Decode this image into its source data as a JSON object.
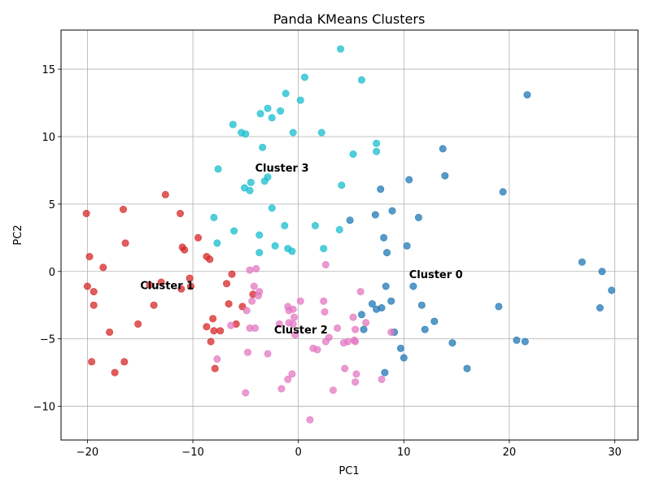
{
  "chart_data": {
    "type": "scatter",
    "title": "Panda KMeans Clusters",
    "xlabel": "PC1",
    "ylabel": "PC2",
    "xlim": [
      -22.5,
      32.2
    ],
    "ylim": [
      -12.5,
      17.9
    ],
    "xticks": [
      -20,
      -10,
      0,
      10,
      20,
      30
    ],
    "yticks": [
      -10,
      -5,
      0,
      5,
      10,
      15
    ],
    "xtick_labels": [
      "−20",
      "−10",
      "0",
      "10",
      "20",
      "30"
    ],
    "ytick_labels": [
      "−10",
      "−5",
      "0",
      "5",
      "10",
      "15"
    ],
    "grid": true,
    "legend": "none",
    "annotations": [
      {
        "text": "Cluster 0",
        "x": 10.5,
        "y": -0.2
      },
      {
        "text": "Cluster 1",
        "x": -15.0,
        "y": -1.0
      },
      {
        "text": "Cluster 2",
        "x": -2.3,
        "y": -4.3
      },
      {
        "text": "Cluster 3",
        "x": -4.1,
        "y": 7.7
      }
    ],
    "series": [
      {
        "cluster": 0,
        "color": "#1f77b4",
        "points": [
          [
            4.9,
            3.8
          ],
          [
            7.3,
            4.2
          ],
          [
            8.9,
            4.5
          ],
          [
            11.4,
            4.0
          ],
          [
            7.8,
            6.1
          ],
          [
            10.5,
            6.8
          ],
          [
            13.7,
            9.1
          ],
          [
            13.9,
            7.1
          ],
          [
            19.4,
            5.9
          ],
          [
            21.7,
            13.1
          ],
          [
            8.1,
            2.5
          ],
          [
            10.3,
            1.9
          ],
          [
            8.4,
            1.4
          ],
          [
            26.9,
            0.7
          ],
          [
            28.8,
            0.0
          ],
          [
            29.7,
            -1.4
          ],
          [
            8.3,
            -1.1
          ],
          [
            10.9,
            -1.1
          ],
          [
            8.8,
            -2.2
          ],
          [
            7.0,
            -2.4
          ],
          [
            7.4,
            -2.8
          ],
          [
            7.9,
            -2.7
          ],
          [
            6.0,
            -3.2
          ],
          [
            11.7,
            -2.5
          ],
          [
            12.9,
            -3.7
          ],
          [
            19.0,
            -2.6
          ],
          [
            28.6,
            -2.7
          ],
          [
            9.1,
            -4.5
          ],
          [
            12.0,
            -4.3
          ],
          [
            6.2,
            -4.3
          ],
          [
            14.6,
            -5.3
          ],
          [
            20.7,
            -5.1
          ],
          [
            21.5,
            -5.2
          ],
          [
            9.7,
            -5.7
          ],
          [
            10.0,
            -6.4
          ],
          [
            16.0,
            -7.2
          ],
          [
            8.2,
            -7.5
          ]
        ]
      },
      {
        "cluster": 1,
        "color": "#d62728",
        "points": [
          [
            -20.1,
            4.3
          ],
          [
            -16.6,
            4.6
          ],
          [
            -12.6,
            5.7
          ],
          [
            -11.2,
            4.3
          ],
          [
            -16.4,
            2.1
          ],
          [
            -9.5,
            2.5
          ],
          [
            -11.0,
            1.8
          ],
          [
            -10.8,
            1.6
          ],
          [
            -19.8,
            1.1
          ],
          [
            -18.5,
            0.3
          ],
          [
            -8.7,
            1.1
          ],
          [
            -8.4,
            0.9
          ],
          [
            -20.0,
            -1.1
          ],
          [
            -19.4,
            -1.5
          ],
          [
            -14.1,
            -1.0
          ],
          [
            -13.0,
            -0.8
          ],
          [
            -10.3,
            -0.5
          ],
          [
            -10.2,
            -1.1
          ],
          [
            -11.1,
            -1.3
          ],
          [
            -6.8,
            -0.9
          ],
          [
            -6.3,
            -0.2
          ],
          [
            -19.4,
            -2.5
          ],
          [
            -13.7,
            -2.5
          ],
          [
            -6.6,
            -2.4
          ],
          [
            -5.3,
            -2.6
          ],
          [
            -4.3,
            -1.7
          ],
          [
            -8.1,
            -3.5
          ],
          [
            -15.2,
            -3.9
          ],
          [
            -17.9,
            -4.5
          ],
          [
            -8.7,
            -4.1
          ],
          [
            -8.0,
            -4.4
          ],
          [
            -7.4,
            -4.4
          ],
          [
            -5.9,
            -3.9
          ],
          [
            -8.3,
            -5.2
          ],
          [
            -19.6,
            -6.7
          ],
          [
            -16.5,
            -6.7
          ],
          [
            -17.4,
            -7.5
          ],
          [
            -7.9,
            -7.2
          ]
        ]
      },
      {
        "cluster": 2,
        "color": "#e377c2",
        "points": [
          [
            2.6,
            0.5
          ],
          [
            -4.6,
            0.1
          ],
          [
            -4.0,
            0.2
          ],
          [
            -4.2,
            -1.1
          ],
          [
            -3.7,
            -1.5
          ],
          [
            -3.8,
            -1.8
          ],
          [
            -4.4,
            -2.2
          ],
          [
            5.9,
            -1.5
          ],
          [
            0.2,
            -2.2
          ],
          [
            2.4,
            -2.2
          ],
          [
            -1.0,
            -2.6
          ],
          [
            -0.5,
            -2.8
          ],
          [
            -4.9,
            -2.9
          ],
          [
            -0.9,
            -2.9
          ],
          [
            2.5,
            -3.0
          ],
          [
            -0.4,
            -3.4
          ],
          [
            5.2,
            -3.4
          ],
          [
            6.4,
            -3.8
          ],
          [
            -1.8,
            -3.9
          ],
          [
            -0.9,
            -3.8
          ],
          [
            -0.5,
            -3.9
          ],
          [
            -4.6,
            -4.2
          ],
          [
            -4.1,
            -4.2
          ],
          [
            3.7,
            -4.2
          ],
          [
            5.4,
            -4.3
          ],
          [
            8.8,
            -4.5
          ],
          [
            -0.3,
            -4.7
          ],
          [
            2.9,
            -4.9
          ],
          [
            5.3,
            -5.1
          ],
          [
            5.4,
            -5.2
          ],
          [
            2.6,
            -5.2
          ],
          [
            4.7,
            -5.2
          ],
          [
            4.3,
            -5.3
          ],
          [
            1.4,
            -5.7
          ],
          [
            1.8,
            -5.8
          ],
          [
            -4.8,
            -6.0
          ],
          [
            -2.9,
            -6.1
          ],
          [
            -7.7,
            -6.5
          ],
          [
            4.4,
            -7.2
          ],
          [
            -0.6,
            -7.6
          ],
          [
            5.5,
            -7.6
          ],
          [
            -1.0,
            -8.0
          ],
          [
            5.4,
            -8.2
          ],
          [
            7.9,
            -8.0
          ],
          [
            -1.6,
            -8.7
          ],
          [
            3.3,
            -8.8
          ],
          [
            -5.0,
            -9.0
          ],
          [
            1.1,
            -11.0
          ],
          [
            -6.4,
            -4.0
          ]
        ]
      },
      {
        "cluster": 3,
        "color": "#17becf",
        "points": [
          [
            4.0,
            16.5
          ],
          [
            0.6,
            14.4
          ],
          [
            6.0,
            14.2
          ],
          [
            -1.2,
            13.2
          ],
          [
            0.2,
            12.7
          ],
          [
            -2.9,
            12.1
          ],
          [
            -1.7,
            11.9
          ],
          [
            -3.6,
            11.7
          ],
          [
            -2.5,
            11.4
          ],
          [
            -6.2,
            10.9
          ],
          [
            -5.4,
            10.3
          ],
          [
            -5.0,
            10.2
          ],
          [
            -0.5,
            10.3
          ],
          [
            2.2,
            10.3
          ],
          [
            7.4,
            9.5
          ],
          [
            -3.4,
            9.2
          ],
          [
            7.4,
            8.9
          ],
          [
            5.2,
            8.7
          ],
          [
            -7.6,
            7.6
          ],
          [
            -2.9,
            7.0
          ],
          [
            -3.2,
            6.7
          ],
          [
            -4.5,
            6.6
          ],
          [
            4.1,
            6.4
          ],
          [
            -5.1,
            6.2
          ],
          [
            -4.6,
            6.0
          ],
          [
            -2.5,
            4.7
          ],
          [
            -8.0,
            4.0
          ],
          [
            -1.3,
            3.4
          ],
          [
            1.6,
            3.4
          ],
          [
            3.9,
            3.1
          ],
          [
            -6.1,
            3.0
          ],
          [
            -3.7,
            2.7
          ],
          [
            -7.7,
            2.1
          ],
          [
            -2.2,
            1.9
          ],
          [
            -1.0,
            1.7
          ],
          [
            2.4,
            1.7
          ],
          [
            -0.6,
            1.5
          ],
          [
            -3.7,
            1.4
          ]
        ]
      }
    ]
  }
}
